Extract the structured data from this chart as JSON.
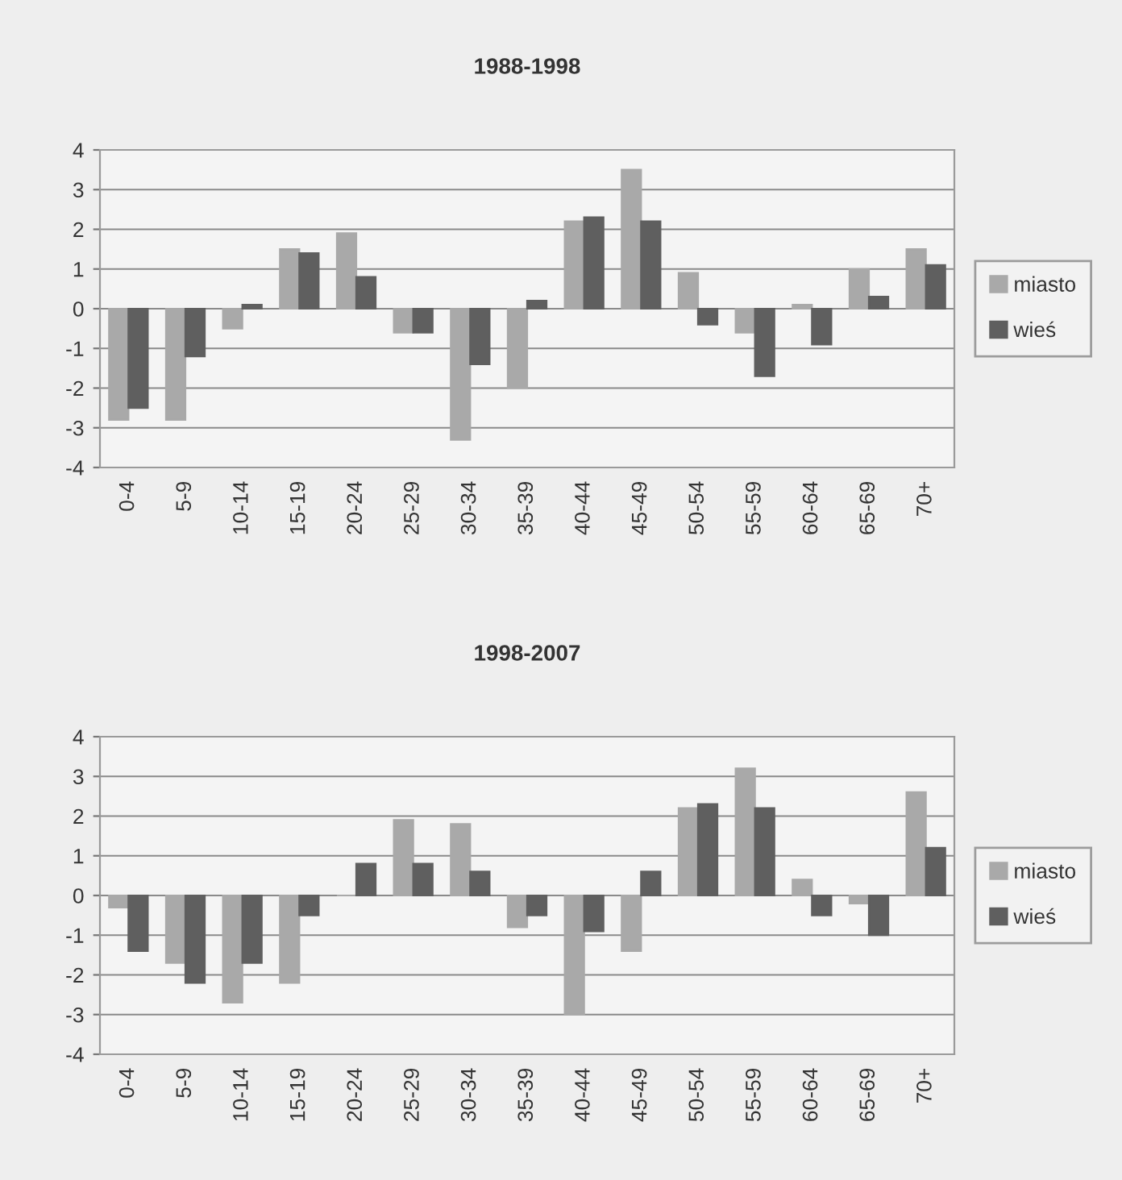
{
  "chart_data": [
    {
      "type": "bar",
      "title": "1988-1998",
      "categories": [
        "0-4",
        "5-9",
        "10-14",
        "15-19",
        "20-24",
        "25-29",
        "30-34",
        "35-39",
        "40-44",
        "45-49",
        "50-54",
        "55-59",
        "60-64",
        "65-69",
        "70+"
      ],
      "series": [
        {
          "name": "miasto",
          "color": "#a9a9a9",
          "values": [
            -2.8,
            -2.8,
            -0.5,
            1.5,
            1.9,
            -0.6,
            -3.3,
            -2.0,
            2.2,
            3.5,
            0.9,
            -0.6,
            0.1,
            1.0,
            1.5
          ]
        },
        {
          "name": "wieś",
          "color": "#5f5f5f",
          "values": [
            -2.5,
            -1.2,
            0.1,
            1.4,
            0.8,
            -0.6,
            -1.4,
            0.2,
            2.3,
            2.2,
            -0.4,
            -1.7,
            -0.9,
            0.3,
            1.1
          ]
        }
      ],
      "ylim": [
        -4,
        4
      ],
      "yticks": [
        -4,
        -3,
        -2,
        -1,
        0,
        1,
        2,
        3,
        4
      ],
      "grid": "y",
      "legend": "right"
    },
    {
      "type": "bar",
      "title": "1998-2007",
      "categories": [
        "0-4",
        "5-9",
        "10-14",
        "15-19",
        "20-24",
        "25-29",
        "30-34",
        "35-39",
        "40-44",
        "45-49",
        "50-54",
        "55-59",
        "60-64",
        "65-69",
        "70+"
      ],
      "series": [
        {
          "name": "miasto",
          "color": "#a9a9a9",
          "values": [
            -0.3,
            -1.7,
            -2.7,
            -2.2,
            0.0,
            1.9,
            1.8,
            -0.8,
            -3.0,
            -1.4,
            2.2,
            3.2,
            0.4,
            -0.2,
            2.6
          ]
        },
        {
          "name": "wieś",
          "color": "#5f5f5f",
          "values": [
            -1.4,
            -2.2,
            -1.7,
            -0.5,
            0.8,
            0.8,
            0.6,
            -0.5,
            -0.9,
            0.6,
            2.3,
            2.2,
            -0.5,
            -1.0,
            1.2
          ]
        }
      ],
      "ylim": [
        -4,
        4
      ],
      "yticks": [
        -4,
        -3,
        -2,
        -1,
        0,
        1,
        2,
        3,
        4
      ],
      "grid": "y",
      "legend": "right"
    }
  ]
}
